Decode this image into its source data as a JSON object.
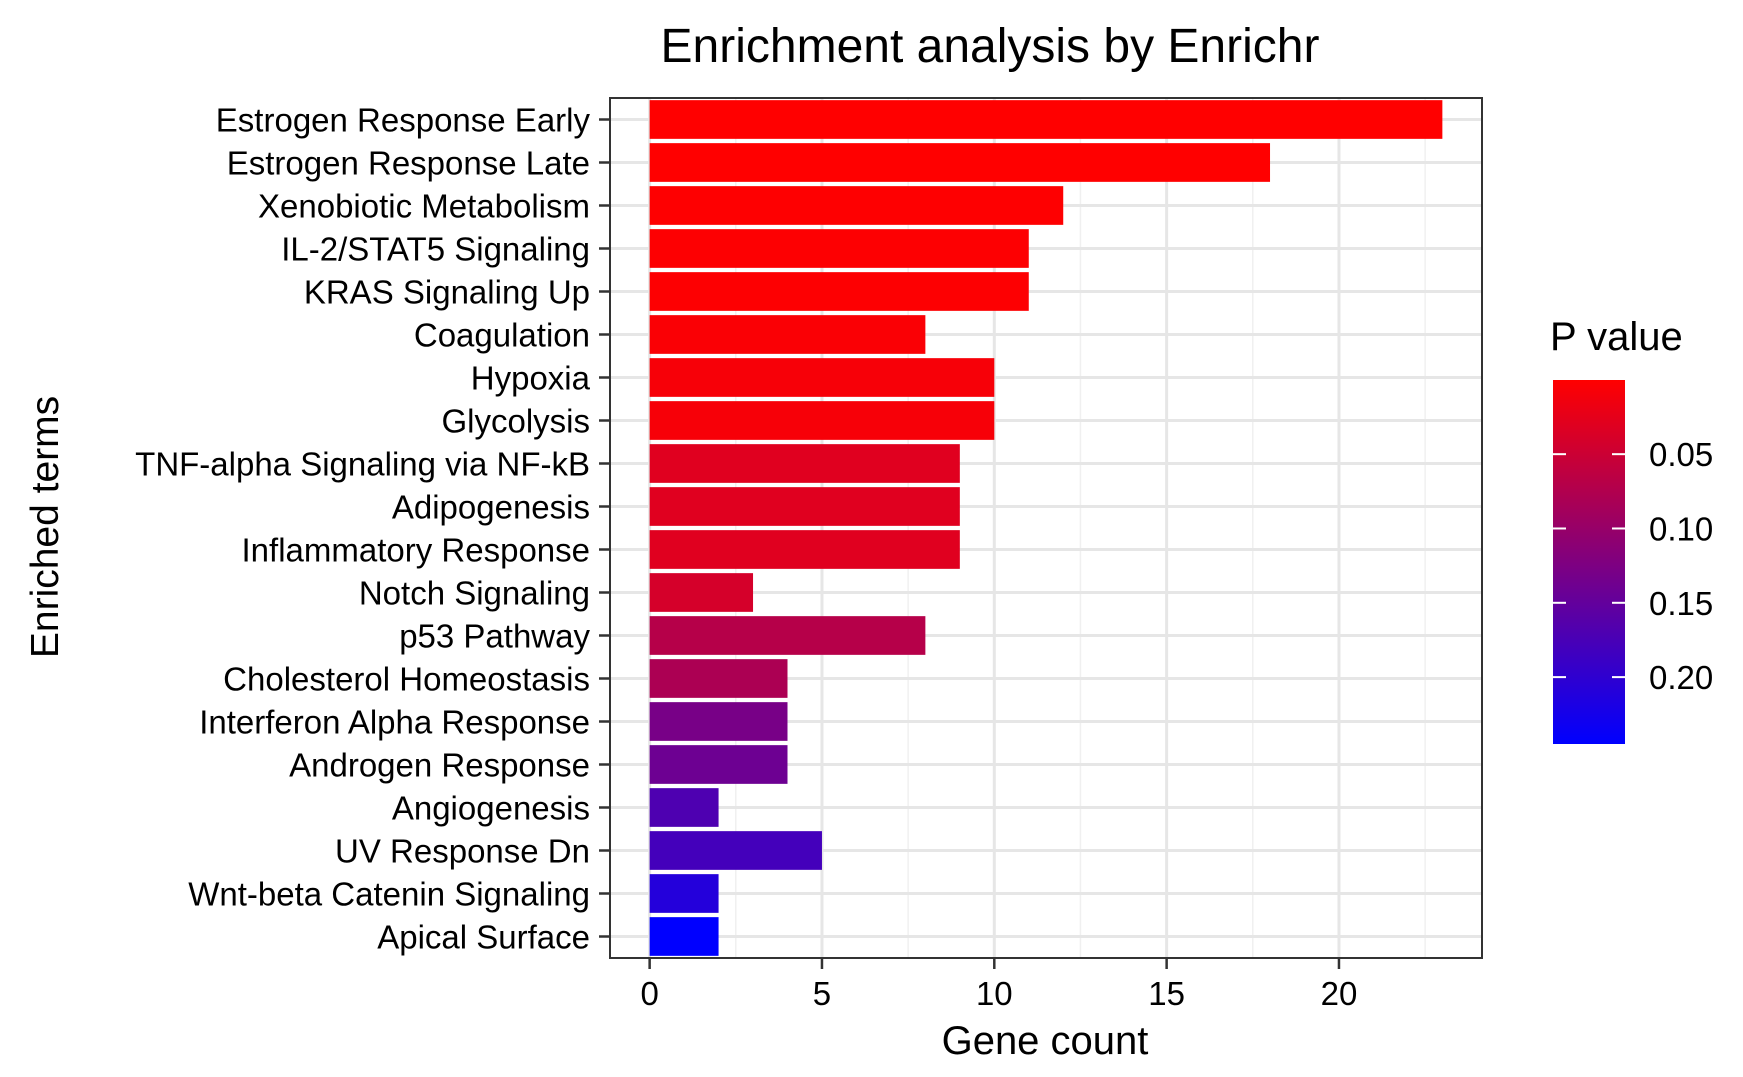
{
  "chart_data": {
    "type": "bar",
    "orientation": "horizontal",
    "title": "Enrichment analysis by Enrichr",
    "xlabel": "Gene count",
    "ylabel": "Enriched terms",
    "xlim": [
      -1.15,
      24.15
    ],
    "xticks": [
      0,
      5,
      10,
      15,
      20
    ],
    "grid": true,
    "categories": [
      "Estrogen Response Early",
      "Estrogen Response Late",
      "Xenobiotic Metabolism",
      "IL-2/STAT5 Signaling",
      "KRAS Signaling Up",
      "Coagulation",
      "Hypoxia",
      "Glycolysis",
      "TNF-alpha Signaling via NF-kB",
      "Adipogenesis",
      "Inflammatory Response",
      "Notch Signaling",
      "p53 Pathway",
      "Cholesterol Homeostasis",
      "Interferon Alpha Response",
      "Androgen Response",
      "Angiogenesis",
      "UV Response Dn",
      "Wnt-beta Catenin Signaling",
      "Apical Surface"
    ],
    "values": [
      23,
      18,
      12,
      11,
      11,
      8,
      10,
      10,
      9,
      9,
      9,
      3,
      8,
      4,
      4,
      4,
      2,
      5,
      2,
      2
    ],
    "p_values": [
      0.0001,
      0.0001,
      0.001,
      0.002,
      0.002,
      0.005,
      0.008,
      0.008,
      0.03,
      0.03,
      0.03,
      0.04,
      0.07,
      0.08,
      0.13,
      0.14,
      0.17,
      0.18,
      0.21,
      0.245
    ],
    "legend": {
      "title": "P value",
      "position": "right",
      "ticks": [
        0.05,
        0.1,
        0.15,
        0.2
      ],
      "tick_labels": [
        "0.05",
        "0.10",
        "0.15",
        "0.20"
      ],
      "range": [
        0.0001,
        0.245
      ],
      "low_color": "#ff0000",
      "high_color": "#0000ff"
    }
  }
}
